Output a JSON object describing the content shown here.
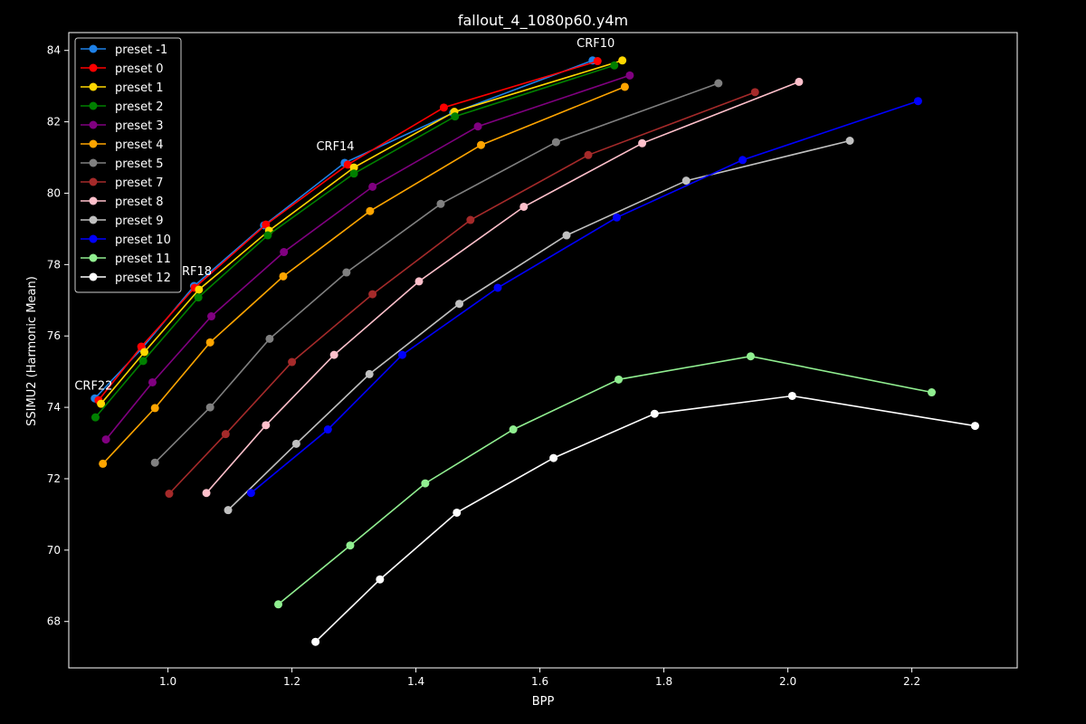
{
  "chart_data": {
    "type": "line",
    "title": "fallout_4_1080p60.y4m",
    "xlabel": "BPP",
    "ylabel": "SSIMU2 (Harmonic Mean)",
    "xlim": [
      0.84,
      2.37
    ],
    "ylim": [
      66.7,
      84.5
    ],
    "xticks": [
      "1.0",
      "1.2",
      "1.4",
      "1.6",
      "1.8",
      "2.0",
      "2.2"
    ],
    "xtick_values": [
      1.0,
      1.2,
      1.4,
      1.6,
      1.8,
      2.0,
      2.2
    ],
    "yticks": [
      "68",
      "70",
      "72",
      "74",
      "76",
      "78",
      "80",
      "82",
      "84"
    ],
    "ytick_values": [
      68,
      70,
      72,
      74,
      76,
      78,
      80,
      82,
      84
    ],
    "legend_position": "top-left",
    "background": "#000000",
    "foreground": "#ffffff",
    "annotations": [
      {
        "text": "CRF10",
        "x": 1.69,
        "y": 84.1
      },
      {
        "text": "CRF14",
        "x": 1.27,
        "y": 81.2
      },
      {
        "text": "CRF18",
        "x": 1.04,
        "y": 77.7
      },
      {
        "text": "CRF22",
        "x": 0.88,
        "y": 74.5
      }
    ],
    "series": [
      {
        "name": "preset -1",
        "color": "#1e81e8",
        "x": [
          0.882,
          0.958,
          1.042,
          1.155,
          1.285,
          1.46,
          1.685
        ],
        "y": [
          74.25,
          75.65,
          77.4,
          79.1,
          80.85,
          82.25,
          83.72
        ]
      },
      {
        "name": "preset 0",
        "color": "#ff0000",
        "x": [
          0.888,
          0.957,
          1.043,
          1.158,
          1.29,
          1.445,
          1.693
        ],
        "y": [
          74.2,
          75.7,
          77.35,
          79.12,
          80.8,
          82.4,
          83.7
        ]
      },
      {
        "name": "preset 1",
        "color": "#ffd700",
        "x": [
          0.892,
          0.962,
          1.05,
          1.163,
          1.3,
          1.462,
          1.733
        ],
        "y": [
          74.1,
          75.55,
          77.3,
          78.95,
          80.72,
          82.28,
          83.72
        ]
      },
      {
        "name": "preset 2",
        "color": "#008000",
        "x": [
          0.883,
          0.96,
          1.049,
          1.161,
          1.3,
          1.463,
          1.72
        ],
        "y": [
          73.72,
          75.3,
          77.08,
          78.82,
          80.55,
          82.15,
          83.58
        ]
      },
      {
        "name": "preset 3",
        "color": "#800080",
        "x": [
          0.9,
          0.975,
          1.07,
          1.187,
          1.33,
          1.5,
          1.745
        ],
        "y": [
          73.1,
          74.7,
          76.55,
          78.35,
          80.18,
          81.87,
          83.3
        ]
      },
      {
        "name": "preset 4",
        "color": "#ffa500",
        "x": [
          0.895,
          0.979,
          1.068,
          1.186,
          1.326,
          1.505,
          1.737
        ],
        "y": [
          72.42,
          73.98,
          75.82,
          77.67,
          79.5,
          81.35,
          82.98
        ]
      },
      {
        "name": "preset 5",
        "color": "#808080",
        "x": [
          0.979,
          1.068,
          1.164,
          1.288,
          1.44,
          1.626,
          1.888
        ],
        "y": [
          72.45,
          74.0,
          75.92,
          77.78,
          79.7,
          81.43,
          83.08
        ]
      },
      {
        "name": "preset 7",
        "color": "#a52a2a",
        "x": [
          1.002,
          1.093,
          1.2,
          1.33,
          1.488,
          1.678,
          1.947
        ],
        "y": [
          71.58,
          73.25,
          75.27,
          77.17,
          79.25,
          81.07,
          82.83
        ]
      },
      {
        "name": "preset 8",
        "color": "#ffc0cb",
        "x": [
          1.062,
          1.158,
          1.268,
          1.405,
          1.574,
          1.765,
          2.018
        ],
        "y": [
          71.6,
          73.5,
          75.47,
          77.53,
          79.62,
          81.4,
          83.12
        ]
      },
      {
        "name": "preset 9",
        "color": "#c0c0c0",
        "x": [
          1.097,
          1.207,
          1.325,
          1.47,
          1.643,
          1.836,
          2.1
        ],
        "y": [
          71.12,
          72.98,
          74.93,
          76.9,
          78.82,
          80.35,
          81.47
        ]
      },
      {
        "name": "preset 10",
        "color": "#0000ff",
        "x": [
          1.134,
          1.258,
          1.378,
          1.532,
          1.724,
          1.927,
          2.21
        ],
        "y": [
          71.6,
          73.38,
          75.47,
          77.35,
          79.32,
          80.93,
          82.58
        ]
      },
      {
        "name": "preset 11",
        "color": "#90ee90",
        "x": [
          1.178,
          1.294,
          1.415,
          1.557,
          1.727,
          1.94,
          2.232
        ],
        "y": [
          68.48,
          70.13,
          71.87,
          73.38,
          74.78,
          75.43,
          74.42
        ]
      },
      {
        "name": "preset 12",
        "color": "#ffffff",
        "x": [
          1.238,
          1.342,
          1.466,
          1.622,
          1.785,
          2.007,
          2.302
        ],
        "y": [
          67.43,
          69.18,
          71.05,
          72.58,
          73.82,
          74.32,
          73.48
        ]
      }
    ]
  }
}
